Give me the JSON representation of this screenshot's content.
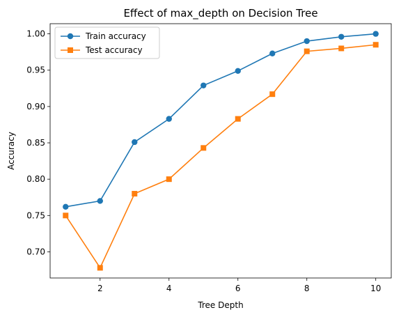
{
  "chart_data": {
    "type": "line",
    "title": "Effect of max_depth on Decision Tree",
    "xlabel": "Tree Depth",
    "ylabel": "Accuracy",
    "xlim": [
      0.55,
      10.45
    ],
    "ylim": [
      0.664,
      1.014
    ],
    "x_ticks": [
      2,
      4,
      6,
      8,
      10
    ],
    "y_ticks": [
      0.7,
      0.75,
      0.8,
      0.85,
      0.9,
      0.95,
      1.0
    ],
    "y_tick_labels": [
      "0.70",
      "0.75",
      "0.80",
      "0.85",
      "0.90",
      "0.95",
      "1.00"
    ],
    "x": [
      1,
      2,
      3,
      4,
      5,
      6,
      7,
      8,
      9,
      10
    ],
    "series": [
      {
        "name": "Train accuracy",
        "color": "#1f77b4",
        "marker": "circle",
        "values": [
          0.762,
          0.77,
          0.851,
          0.883,
          0.929,
          0.949,
          0.973,
          0.99,
          0.996,
          1.0
        ]
      },
      {
        "name": "Test accuracy",
        "color": "#ff7f0e",
        "marker": "square",
        "values": [
          0.75,
          0.678,
          0.78,
          0.8,
          0.843,
          0.883,
          0.917,
          0.976,
          0.98,
          0.985
        ]
      }
    ],
    "grid": false,
    "legend_position": "upper-left"
  }
}
